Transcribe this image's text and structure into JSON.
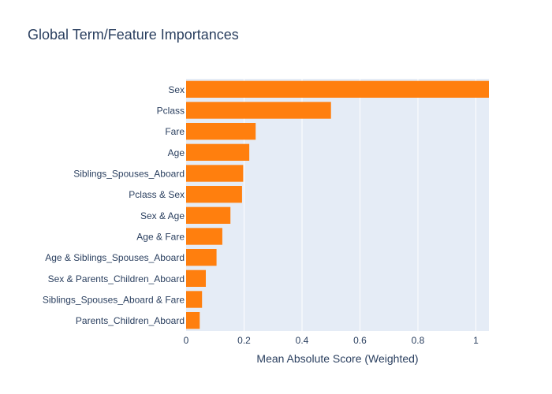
{
  "chart_data": {
    "type": "bar",
    "orientation": "horizontal",
    "title": "Global Term/Feature Importances",
    "xlabel": "Mean Absolute Score (Weighted)",
    "ylabel": "",
    "xlim": [
      0,
      1.045
    ],
    "x_ticks": [
      0,
      0.2,
      0.4,
      0.6,
      0.8,
      1
    ],
    "x_tick_labels": [
      "0",
      "0.2",
      "0.4",
      "0.6",
      "0.8",
      "1"
    ],
    "grid": true,
    "categories": [
      "Sex",
      "Pclass",
      "Fare",
      "Age",
      "Siblings_Spouses_Aboard",
      "Pclass & Sex",
      "Sex & Age",
      "Age & Fare",
      "Age & Siblings_Spouses_Aboard",
      "Sex & Parents_Children_Aboard",
      "Siblings_Spouses_Aboard & Fare",
      "Parents_Children_Aboard"
    ],
    "values": [
      1.045,
      0.5,
      0.24,
      0.218,
      0.197,
      0.193,
      0.153,
      0.125,
      0.105,
      0.068,
      0.055,
      0.047
    ],
    "colors": {
      "bar": "#ff7f0e",
      "plot_background": "#e5ecf6",
      "gridline": "#ffffff",
      "text": "#2a3f5f"
    }
  }
}
